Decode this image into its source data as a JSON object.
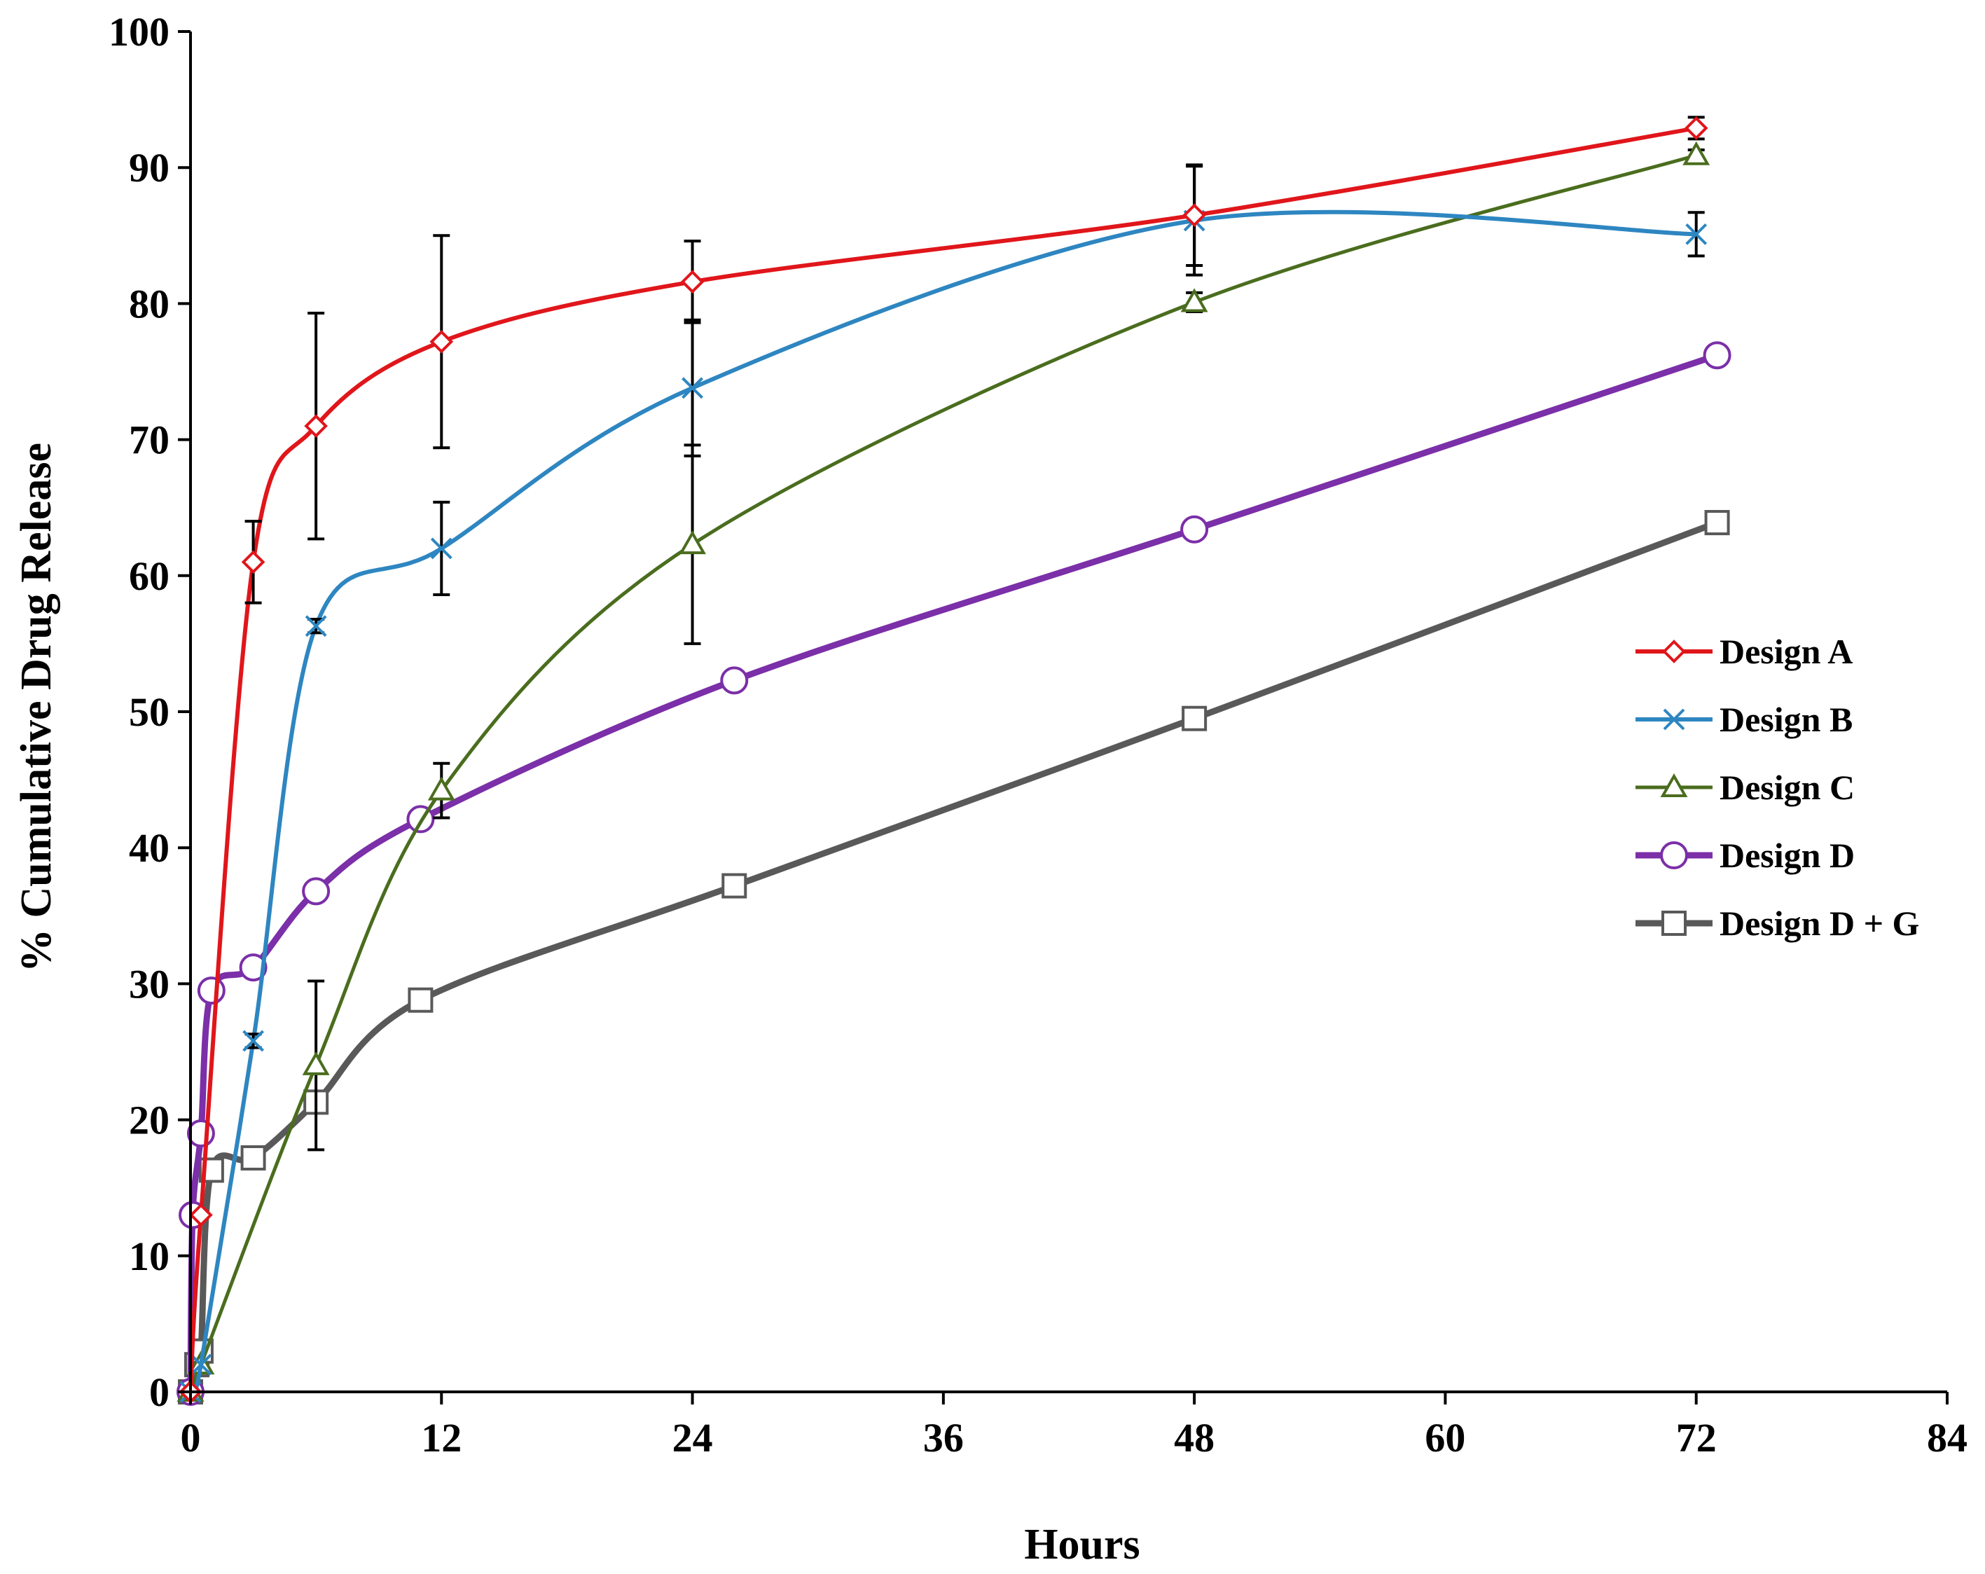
{
  "chart_data": {
    "type": "line",
    "title": "",
    "xlabel": "Hours",
    "ylabel": "% Cumulative  Drug Release",
    "xlim": [
      0,
      84
    ],
    "ylim": [
      0,
      100
    ],
    "xticks": [
      0,
      12,
      24,
      36,
      48,
      60,
      72,
      84
    ],
    "yticks": [
      0,
      10,
      20,
      30,
      40,
      50,
      60,
      70,
      80,
      90,
      100
    ],
    "xtick_labels": [
      "0",
      "12",
      "24",
      "36",
      "48",
      "60",
      "72",
      "84"
    ],
    "ytick_labels": [
      "0",
      "10",
      "20",
      "30",
      "40",
      "50",
      "60",
      "70",
      "80",
      "90",
      "100"
    ],
    "grid": false,
    "legend_position": "right",
    "series": [
      {
        "name": "Design A",
        "color": "#e0161b",
        "marker": "diamond",
        "x": [
          0,
          0.5,
          3,
          6,
          12,
          24,
          48,
          72
        ],
        "y": [
          0,
          13,
          61,
          71,
          77.2,
          81.6,
          86.5,
          92.9
        ],
        "err": [
          0,
          0,
          3,
          8.3,
          7.8,
          3,
          3.7,
          0.8
        ]
      },
      {
        "name": "Design B",
        "color": "#2e86c1",
        "marker": "x",
        "x": [
          0,
          0.5,
          3,
          6,
          12,
          24,
          48,
          72
        ],
        "y": [
          0,
          2,
          25.8,
          56.3,
          62,
          73.8,
          86.1,
          85.1
        ],
        "err": [
          0,
          0,
          0.5,
          0.5,
          3.4,
          5,
          4,
          1.6
        ]
      },
      {
        "name": "Design C",
        "color": "#4a6d1e",
        "marker": "triangle",
        "x": [
          0,
          0.5,
          6,
          12,
          24,
          48,
          72
        ],
        "y": [
          0,
          2,
          24,
          44.2,
          62.3,
          80.1,
          90.9
        ],
        "err": [
          0,
          0,
          6.2,
          2,
          7.3,
          0.7,
          0.4
        ]
      },
      {
        "name": "Design D",
        "color": "#7b2fa8",
        "marker": "circle",
        "x": [
          0,
          0.1,
          0.5,
          1,
          3,
          6,
          11,
          26,
          48,
          73
        ],
        "y": [
          0,
          13,
          19,
          29.5,
          31.2,
          36.8,
          42.1,
          52.3,
          63.4,
          76.2
        ],
        "err": [
          0,
          0,
          0,
          0,
          0,
          0.7,
          0.5,
          0,
          0,
          0.5
        ]
      },
      {
        "name": "Design D + G",
        "color": "#595959",
        "marker": "square",
        "x": [
          0,
          0.3,
          0.5,
          1,
          3,
          6,
          11,
          26,
          48,
          73
        ],
        "y": [
          0,
          2,
          3,
          16.3,
          17.2,
          21.3,
          28.8,
          37.2,
          49.5,
          63.9
        ],
        "err": [
          0,
          0,
          0,
          0,
          0,
          0.5,
          0,
          0.6,
          0,
          0
        ]
      }
    ]
  }
}
